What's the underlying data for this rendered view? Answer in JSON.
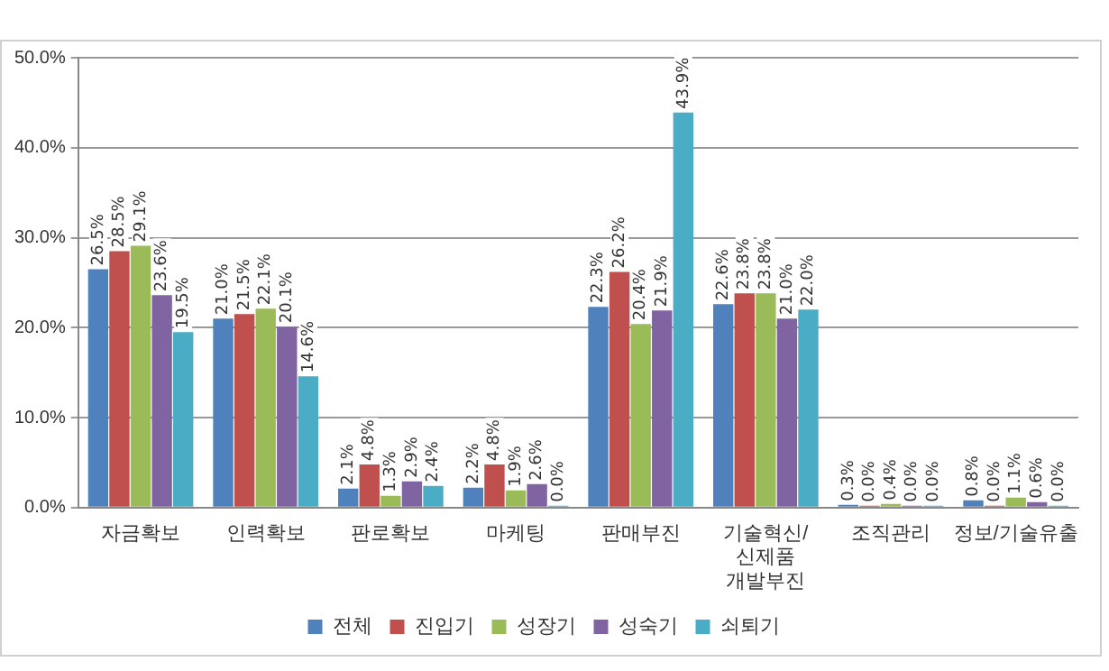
{
  "chart_data": {
    "type": "bar",
    "categories": [
      "자금확보",
      "인력확보",
      "판로확보",
      "마케팅",
      "판매부진",
      "기술혁신/\n신제품\n개발부진",
      "조직관리",
      "정보/기술유출"
    ],
    "series": [
      {
        "name": "전체",
        "color": "#4f81bd",
        "values": [
          26.5,
          21.0,
          2.1,
          2.2,
          22.3,
          22.6,
          0.3,
          0.8
        ],
        "value_labels": [
          "26.5%",
          "21.0%",
          "2.1%",
          "2.2%",
          "22.3%",
          "22.6%",
          "0.3%",
          "0.8%"
        ]
      },
      {
        "name": "진입기",
        "color": "#c0504d",
        "values": [
          28.5,
          21.5,
          4.8,
          4.8,
          26.2,
          23.8,
          0.0,
          0.0
        ],
        "value_labels": [
          "28.5%",
          "21.5%",
          "4.8%",
          "4.8%",
          "26.2%",
          "23.8%",
          "0.0%",
          "0.0%"
        ]
      },
      {
        "name": "성장기",
        "color": "#9bbb59",
        "values": [
          29.1,
          22.1,
          1.3,
          1.9,
          20.4,
          23.8,
          0.4,
          1.1
        ],
        "value_labels": [
          "29.1%",
          "22.1%",
          "1.3%",
          "1.9%",
          "20.4%",
          "23.8%",
          "0.4%",
          "1.1%"
        ]
      },
      {
        "name": "성숙기",
        "color": "#8064a2",
        "values": [
          23.6,
          20.1,
          2.9,
          2.6,
          21.9,
          21.0,
          0.0,
          0.6
        ],
        "value_labels": [
          "23.6%",
          "20.1%",
          "2.9%",
          "2.6%",
          "21.9%",
          "21.0%",
          "0.0%",
          "0.6%"
        ]
      },
      {
        "name": "쇠퇴기",
        "color": "#4bacc6",
        "values": [
          19.5,
          14.6,
          2.4,
          0.0,
          43.9,
          22.0,
          0.0,
          0.0
        ],
        "value_labels": [
          "19.5%",
          "14.6%",
          "2.4%",
          "0.0%",
          "43.9%",
          "22.0%",
          "0.0%",
          "0.0%"
        ]
      }
    ],
    "ylim": [
      0,
      50
    ],
    "yticks": [
      {
        "value": 0,
        "label": "0.0%"
      },
      {
        "value": 10,
        "label": "10.0%"
      },
      {
        "value": 20,
        "label": "20.0%"
      },
      {
        "value": 30,
        "label": "30.0%"
      },
      {
        "value": 40,
        "label": "40.0%"
      },
      {
        "value": 50,
        "label": "50.0%"
      }
    ],
    "grid": "y",
    "legend": "bottom"
  }
}
